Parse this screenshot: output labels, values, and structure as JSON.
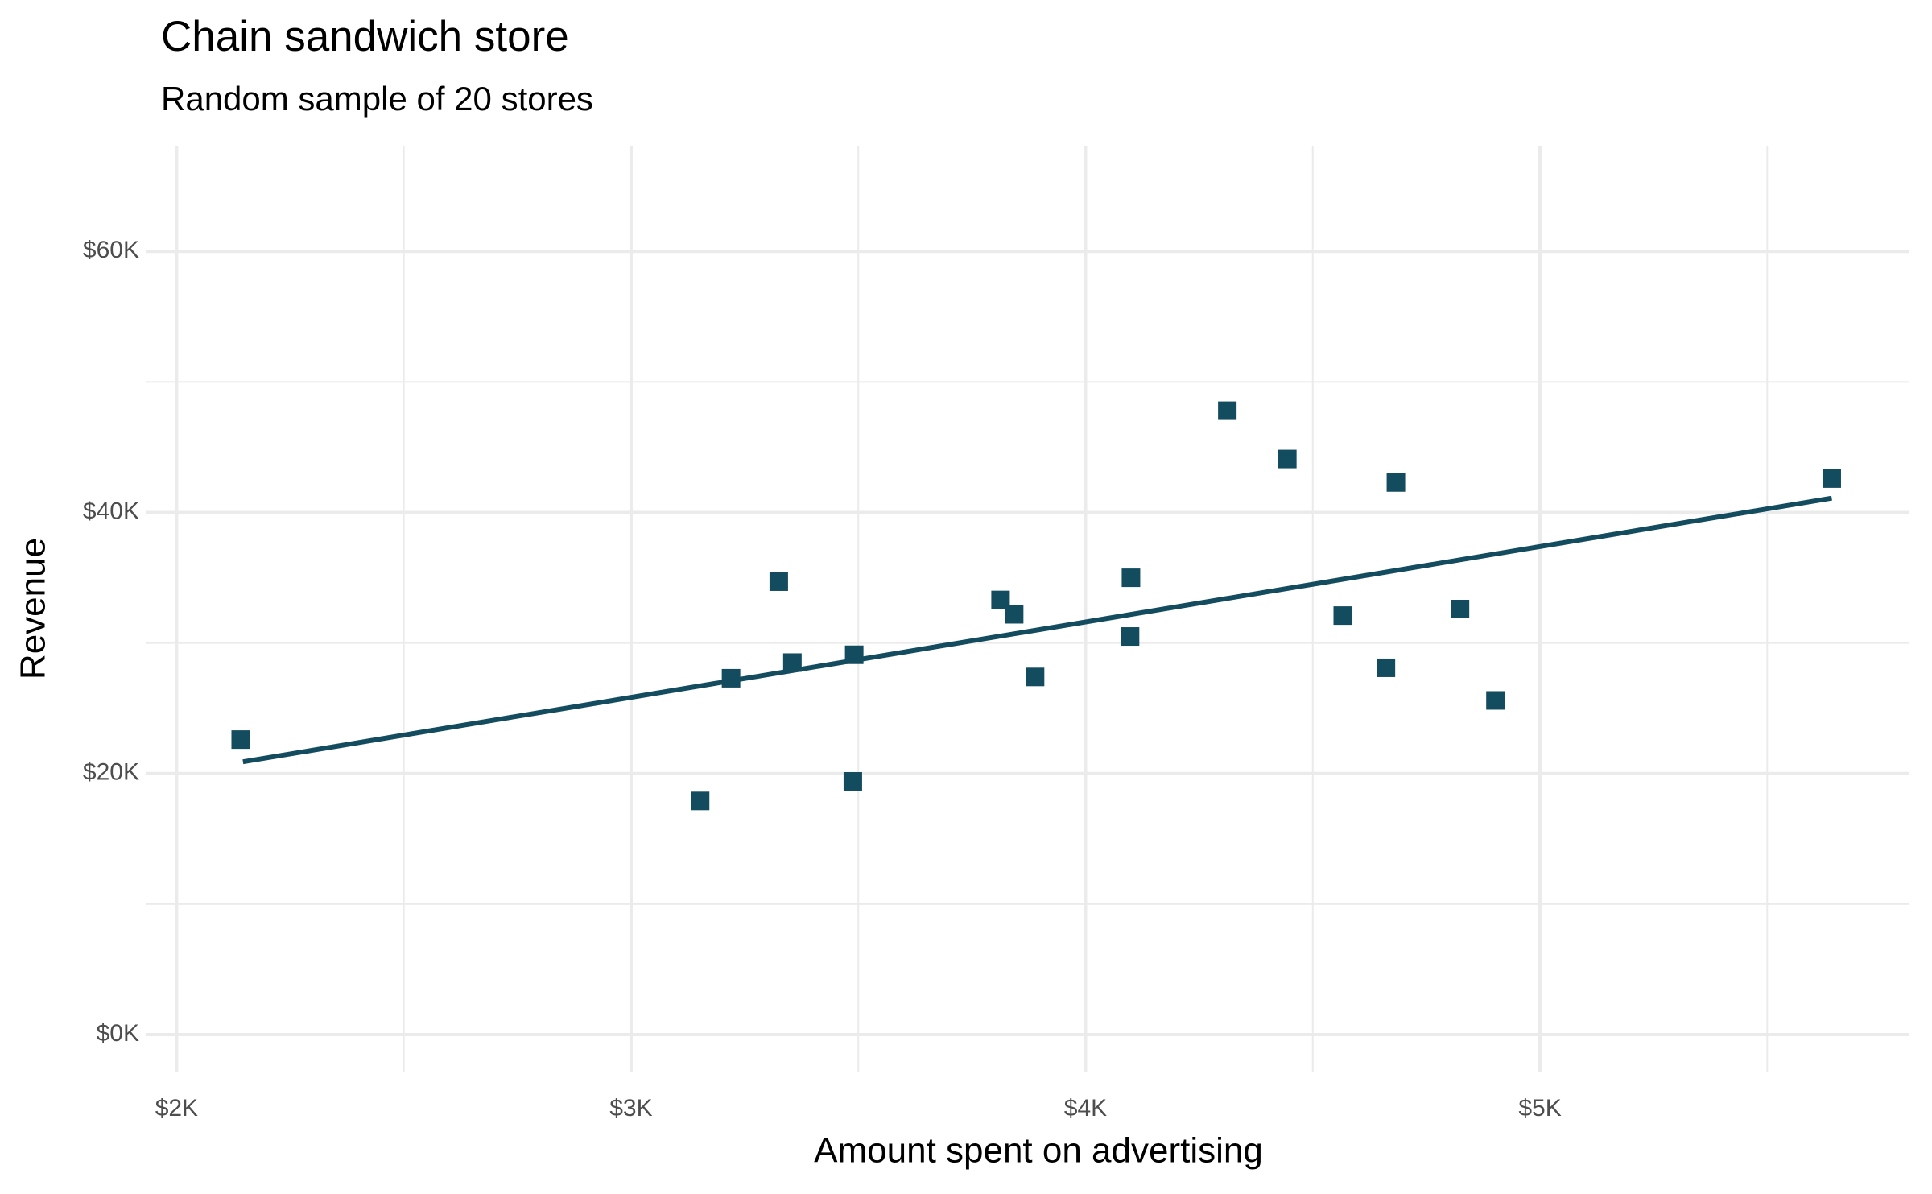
{
  "chart_data": {
    "type": "scatter",
    "title": "Chain sandwich store",
    "subtitle": "Random sample of 20 stores",
    "x_label": "Amount spent on advertising",
    "y_label": "Revenue",
    "color": "#134b5f",
    "x": [
      2141,
      3152,
      3220,
      3325,
      3355,
      3488,
      3491,
      3813,
      3843,
      3889,
      4098,
      4100,
      4312,
      4444,
      4566,
      4661,
      4683,
      4824,
      4902,
      5642
    ],
    "values": [
      22600,
      17900,
      27300,
      34700,
      28500,
      19400,
      29100,
      33300,
      32200,
      27400,
      30500,
      35000,
      47800,
      44100,
      32100,
      28100,
      42300,
      32600,
      25600,
      42600
    ],
    "trend_line": {
      "x": [
        2146,
        5642
      ],
      "values": [
        20900,
        41100
      ]
    },
    "xlim": [
      1932,
      5813
    ],
    "ylim": [
      -2900,
      68100
    ],
    "xticks": [
      {
        "value": 2000,
        "label": "$2K"
      },
      {
        "value": 3000,
        "label": "$3K"
      },
      {
        "value": 4000,
        "label": "$4K"
      },
      {
        "value": 5000,
        "label": "$5K"
      }
    ],
    "yticks": [
      {
        "value": 0,
        "label": "$0K"
      },
      {
        "value": 20000,
        "label": "$20K"
      },
      {
        "value": 40000,
        "label": "$40K"
      },
      {
        "value": 60000,
        "label": "$60K"
      }
    ],
    "minor_xticks": [
      2500,
      3500,
      4500,
      5500
    ],
    "minor_yticks": [
      10000,
      30000,
      50000
    ],
    "grid": true
  }
}
